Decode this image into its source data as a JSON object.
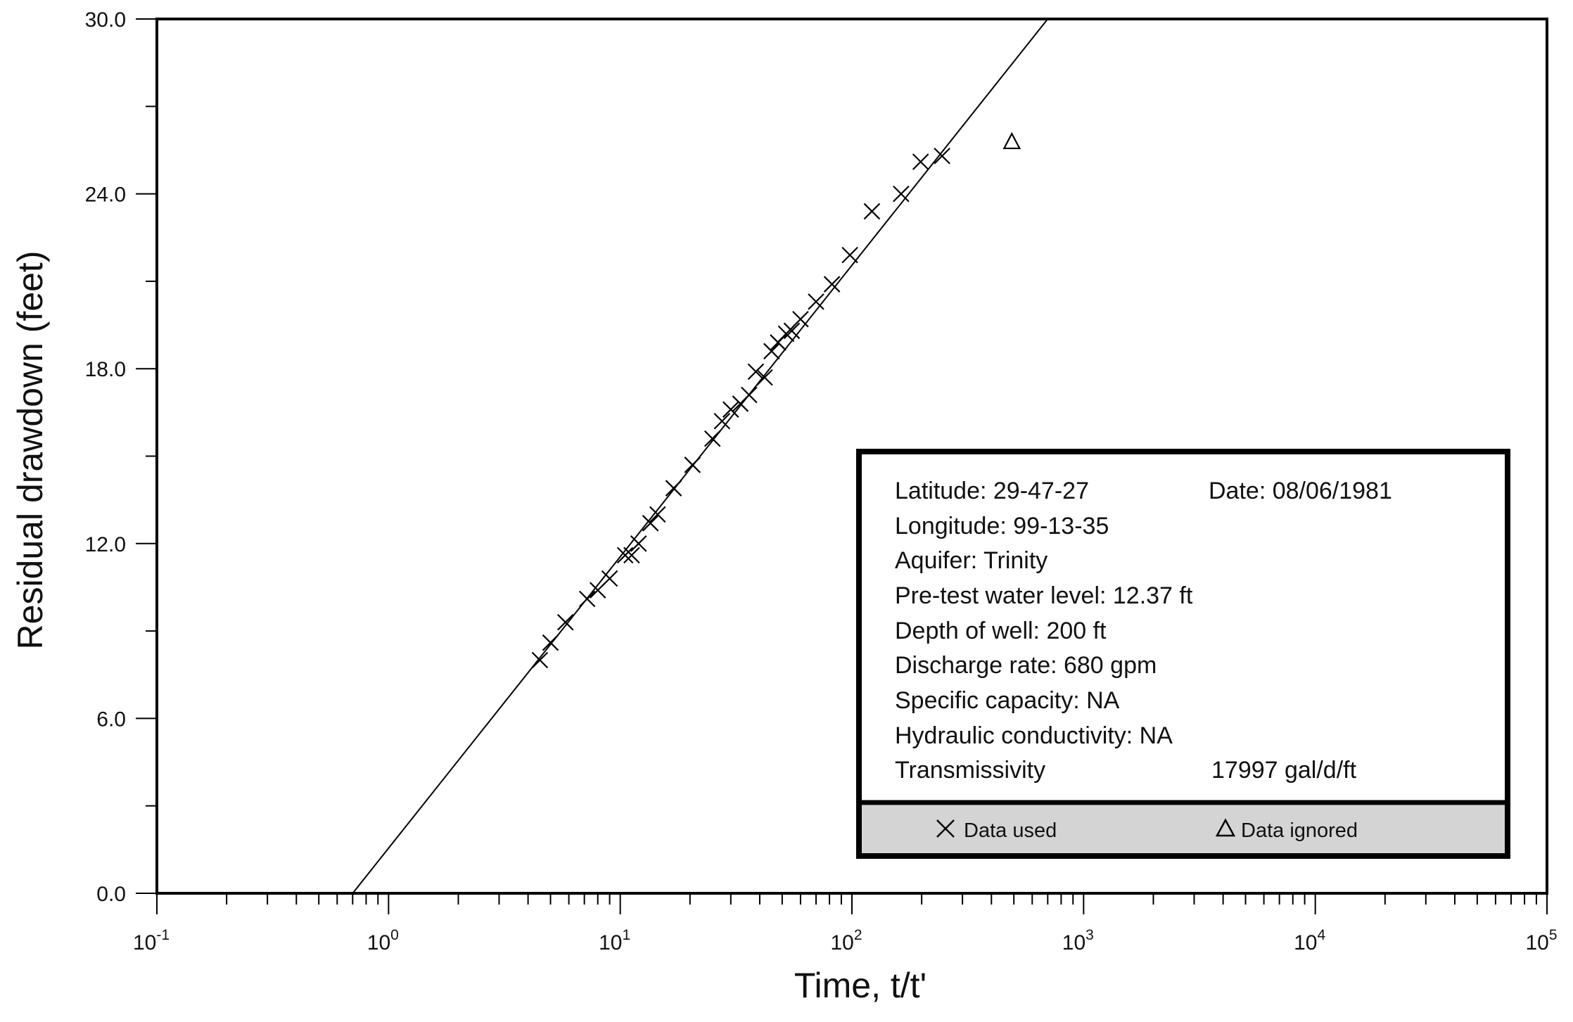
{
  "chart_data": {
    "type": "scatter",
    "x_scale": "log",
    "xlim": [
      0.1,
      100000
    ],
    "ylim": [
      0,
      30
    ],
    "xlabel": "Time, t/t'",
    "ylabel": "Residual drawdown (feet)",
    "x_ticks": [
      {
        "base": "10",
        "exp": "-1",
        "value": 0.1
      },
      {
        "base": "10",
        "exp": "0",
        "value": 1
      },
      {
        "base": "10",
        "exp": "1",
        "value": 10
      },
      {
        "base": "10",
        "exp": "2",
        "value": 100
      },
      {
        "base": "10",
        "exp": "3",
        "value": 1000
      },
      {
        "base": "10",
        "exp": "4",
        "value": 10000
      },
      {
        "base": "10",
        "exp": "5",
        "value": 100000
      }
    ],
    "y_ticks": [
      {
        "label": "0.0",
        "value": 0
      },
      {
        "label": "6.0",
        "value": 6
      },
      {
        "label": "12.0",
        "value": 12
      },
      {
        "label": "18.0",
        "value": 18
      },
      {
        "label": "24.0",
        "value": 24
      },
      {
        "label": "30.0",
        "value": 30
      }
    ],
    "y_minor_ticks": [
      3,
      9,
      15,
      21,
      27
    ],
    "fit_line": {
      "x": [
        0.7,
        700
      ],
      "y": [
        0,
        30
      ]
    },
    "series": [
      {
        "name": "Data used",
        "marker": "x",
        "points": [
          {
            "x": 4.5,
            "y": 8.0
          },
          {
            "x": 5.0,
            "y": 8.6
          },
          {
            "x": 5.8,
            "y": 9.3
          },
          {
            "x": 7.2,
            "y": 10.1
          },
          {
            "x": 8.0,
            "y": 10.4
          },
          {
            "x": 9.0,
            "y": 10.8
          },
          {
            "x": 10.5,
            "y": 11.6
          },
          {
            "x": 11.2,
            "y": 11.6
          },
          {
            "x": 12.0,
            "y": 12.0
          },
          {
            "x": 13.5,
            "y": 12.7
          },
          {
            "x": 14.5,
            "y": 13.0
          },
          {
            "x": 17.0,
            "y": 13.9
          },
          {
            "x": 20.5,
            "y": 14.7
          },
          {
            "x": 25.0,
            "y": 15.6
          },
          {
            "x": 27.5,
            "y": 16.2
          },
          {
            "x": 30.0,
            "y": 16.6
          },
          {
            "x": 33.0,
            "y": 16.8
          },
          {
            "x": 36.0,
            "y": 17.1
          },
          {
            "x": 38.5,
            "y": 17.9
          },
          {
            "x": 42.0,
            "y": 17.7
          },
          {
            "x": 45.0,
            "y": 18.6
          },
          {
            "x": 48.0,
            "y": 18.9
          },
          {
            "x": 52.0,
            "y": 19.2
          },
          {
            "x": 55.0,
            "y": 19.3
          },
          {
            "x": 60.0,
            "y": 19.7
          },
          {
            "x": 70.0,
            "y": 20.3
          },
          {
            "x": 82.0,
            "y": 20.9
          },
          {
            "x": 98.0,
            "y": 21.9
          },
          {
            "x": 122.0,
            "y": 23.4
          },
          {
            "x": 163.0,
            "y": 24.0
          },
          {
            "x": 198.0,
            "y": 25.1
          },
          {
            "x": 245.0,
            "y": 25.3
          }
        ]
      },
      {
        "name": "Data ignored",
        "marker": "triangle",
        "points": [
          {
            "x": 490.0,
            "y": 25.8
          }
        ]
      }
    ]
  },
  "info_box": {
    "latitude": "Latitude:  29-47-27",
    "date": "Date:  08/06/1981",
    "longitude": "Longitude:  99-13-35",
    "aquifer": "Aquifer: Trinity",
    "water_level": "Pre-test water level:  12.37 ft",
    "depth": "Depth of well:  200 ft",
    "discharge": "Discharge rate:  680 gpm",
    "specific_capacity": "Specific capacity:  NA",
    "hydraulic_conductivity": "Hydraulic conductivity:  NA",
    "transmissivity_label": "Transmissivity",
    "transmissivity_value": "17997  gal/d/ft",
    "key_used": "Data used",
    "key_ignored": "Data ignored"
  }
}
